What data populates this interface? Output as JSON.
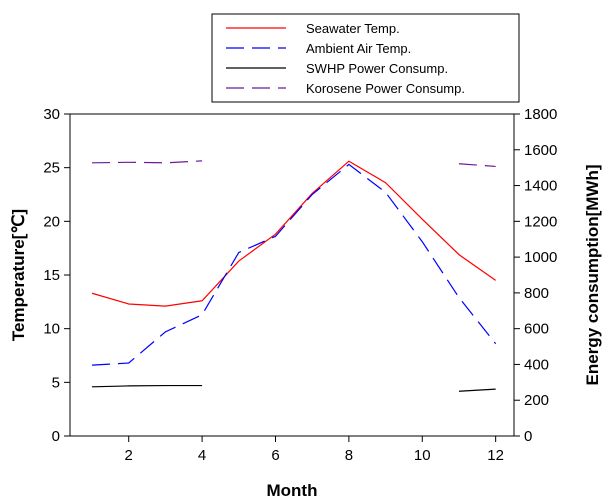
{
  "chart_data": {
    "type": "line",
    "xlabel": "Month",
    "ylabel_left": "Temperature[℃]",
    "ylabel_right": "Energy consumption[MWh]",
    "xlim": [
      0.4,
      12.5
    ],
    "ylim_left": [
      0,
      30
    ],
    "ylim_right": [
      0,
      1800
    ],
    "x_ticks": [
      2,
      4,
      6,
      8,
      10,
      12
    ],
    "y_ticks_left": [
      0,
      5,
      10,
      15,
      20,
      25,
      30
    ],
    "y_ticks_right": [
      0,
      200,
      400,
      600,
      800,
      1000,
      1200,
      1400,
      1600,
      1800
    ],
    "grid": false,
    "legend_position": "top-right",
    "series": [
      {
        "name": "Seawater Temp.",
        "axis": "left",
        "color": "#ff0000",
        "dash": "solid",
        "x": [
          1,
          2,
          3,
          4,
          5,
          6,
          7,
          8,
          9,
          10,
          11,
          12
        ],
        "values": [
          13.3,
          12.3,
          12.1,
          12.6,
          16.3,
          18.8,
          22.6,
          25.6,
          23.6,
          20.2,
          16.9,
          14.5
        ]
      },
      {
        "name": "Ambient Air Temp.",
        "axis": "left",
        "color": "#0000ff",
        "dash": "long-dash",
        "x": [
          1,
          2,
          3,
          4,
          5,
          6,
          7,
          8,
          9,
          10,
          11,
          12
        ],
        "values": [
          6.6,
          6.8,
          9.7,
          11.3,
          17.1,
          18.6,
          22.5,
          25.3,
          22.7,
          18.1,
          12.9,
          8.6
        ]
      },
      {
        "name": "SWHP Power  Consump.",
        "axis": "right",
        "color": "#000000",
        "dash": "solid",
        "x": [
          1,
          2,
          3,
          4,
          11,
          12
        ],
        "values": [
          275,
          280,
          282,
          282,
          250,
          262
        ],
        "segments": [
          [
            0,
            3
          ],
          [
            4,
            5
          ]
        ]
      },
      {
        "name": "Korosene Power Consump.",
        "axis": "right",
        "color": "#6a1b9a",
        "dash": "long-dash",
        "x": [
          1,
          2,
          3,
          4,
          11,
          12
        ],
        "values": [
          1527,
          1530,
          1527,
          1538,
          1522,
          1507
        ],
        "segments": [
          [
            0,
            3
          ],
          [
            4,
            5
          ]
        ]
      }
    ]
  }
}
